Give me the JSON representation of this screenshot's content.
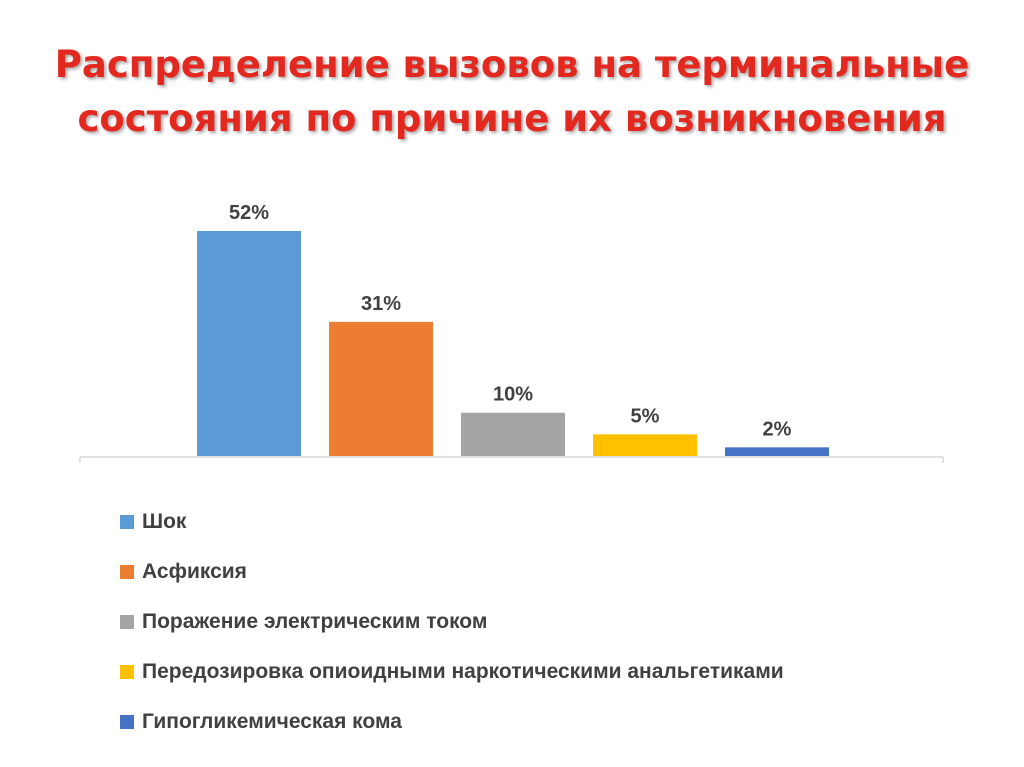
{
  "title": {
    "line1": "Распределение вызовов на терминальные",
    "line2": "состояния по причине их возникновения"
  },
  "chart_data": {
    "type": "bar",
    "categories": [
      "Шок",
      "Асфиксия",
      "Поражение электрическим током",
      "Передозировка опиоидными наркотическими анальгетиками",
      "Гипогликемическая кома"
    ],
    "values": [
      52,
      31,
      10,
      5,
      2
    ],
    "data_labels": [
      "52%",
      "31%",
      "10%",
      "5%",
      "2%"
    ],
    "colors": [
      "#5b9bd5",
      "#ed7d31",
      "#a5a5a5",
      "#ffc000",
      "#4472c4"
    ],
    "ylim": [
      0,
      52
    ],
    "grid": false,
    "legend_position": "bottom"
  }
}
